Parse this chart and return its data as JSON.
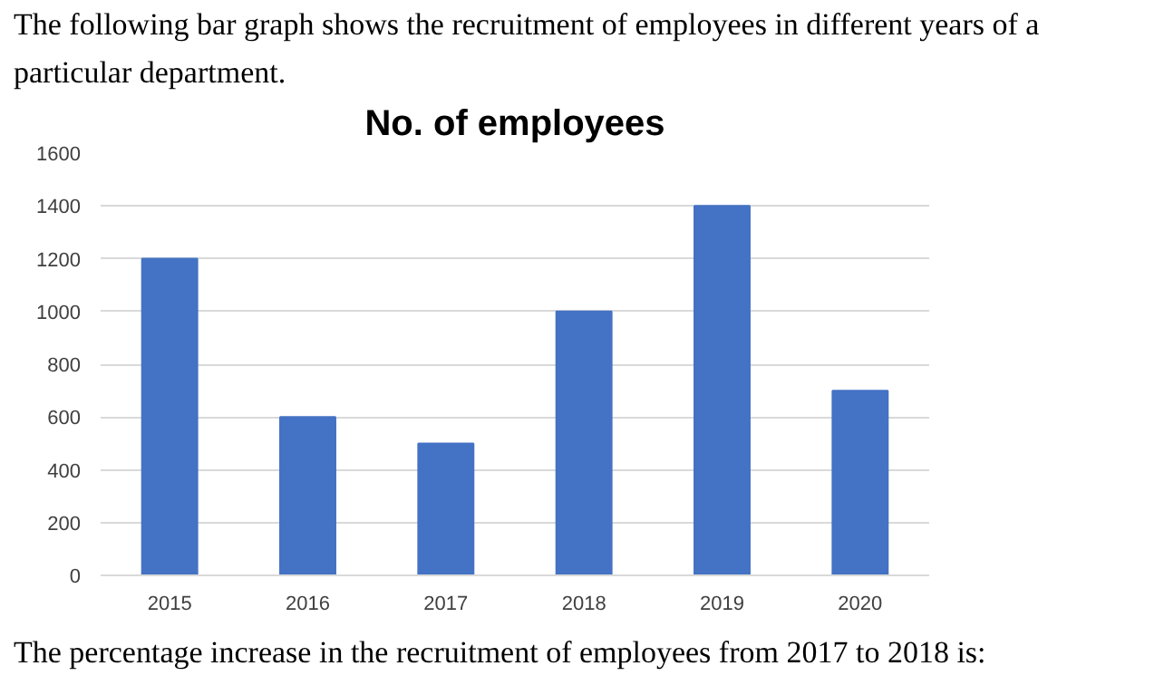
{
  "chart_data": {
    "type": "bar",
    "title": "No. of employees",
    "annotations": [
      "The following bar graph shows the recruitment of employees in different years of a particular department.",
      "The percentage increase in the recruitment of employees from 2017 to 2018 is:"
    ],
    "categories": [
      "2015",
      "2016",
      "2017",
      "2018",
      "2019",
      "2020"
    ],
    "values": [
      1200,
      600,
      500,
      1000,
      1400,
      700
    ],
    "color": "#4472c4",
    "ylim": [
      0,
      1600
    ],
    "yticks": [
      0,
      200,
      400,
      600,
      800,
      1000,
      1200,
      1400,
      1600
    ],
    "grid": "y"
  }
}
